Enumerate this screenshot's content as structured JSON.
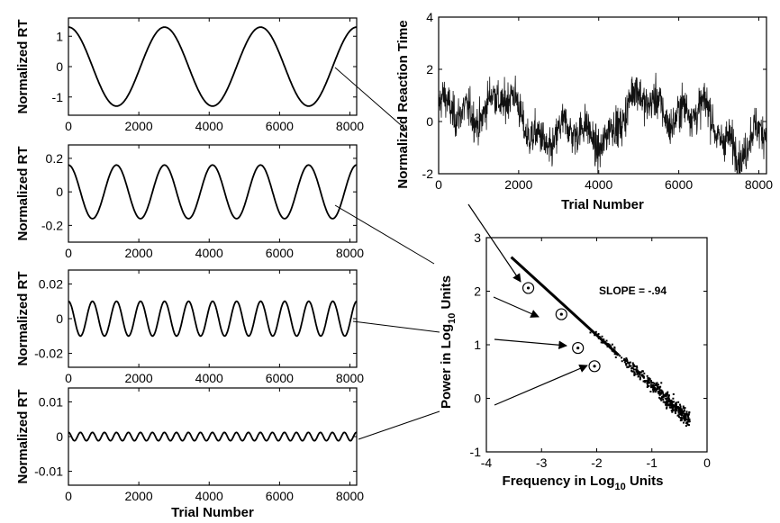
{
  "chart_data": [
    {
      "id": "p1",
      "type": "line",
      "ylabel": "Normalized RT",
      "xlabel": "",
      "xlim": [
        0,
        8192
      ],
      "ylim": [
        -1.6,
        1.6
      ],
      "xticks": [
        0,
        2000,
        4000,
        6000,
        8000
      ],
      "xticklabels": [
        "0",
        "2000",
        "4000",
        "6000",
        "8000"
      ],
      "yticks": [
        -1,
        0,
        1
      ],
      "yticklabels": [
        "-1",
        "0",
        "1"
      ],
      "series": [
        {
          "kind": "sine",
          "amplitude": 1.3,
          "period": 2731,
          "phase_deg": 90
        }
      ]
    },
    {
      "id": "p2",
      "type": "line",
      "ylabel": "Normalized RT",
      "xlabel": "",
      "xlim": [
        0,
        8192
      ],
      "ylim": [
        -0.3,
        0.28
      ],
      "xticks": [
        0,
        2000,
        4000,
        6000,
        8000
      ],
      "xticklabels": [
        "0",
        "2000",
        "4000",
        "6000",
        "8000"
      ],
      "yticks": [
        -0.2,
        0,
        0.2
      ],
      "yticklabels": [
        "-0.2",
        "0",
        "0.2"
      ],
      "series": [
        {
          "kind": "sine",
          "amplitude": 0.16,
          "period": 1365,
          "phase_deg": 90
        }
      ]
    },
    {
      "id": "p3",
      "type": "line",
      "ylabel": "Normalized RT",
      "xlabel": "",
      "xlim": [
        0,
        8192
      ],
      "ylim": [
        -0.028,
        0.028
      ],
      "xticks": [
        0,
        2000,
        4000,
        6000,
        8000
      ],
      "xticklabels": [
        "0",
        "2000",
        "4000",
        "6000",
        "8000"
      ],
      "yticks": [
        -0.02,
        0,
        0.02
      ],
      "yticklabels": [
        "-0.02",
        "0",
        "0.02"
      ],
      "series": [
        {
          "kind": "sine",
          "amplitude": 0.01,
          "period": 683,
          "phase_deg": 90
        }
      ]
    },
    {
      "id": "p4",
      "type": "line",
      "ylabel": "Normalized RT",
      "xlabel": "Trial Number",
      "xlim": [
        0,
        8192
      ],
      "ylim": [
        -0.014,
        0.014
      ],
      "xticks": [
        0,
        2000,
        4000,
        6000,
        8000
      ],
      "xticklabels": [
        "0",
        "2000",
        "4000",
        "6000",
        "8000"
      ],
      "yticks": [
        -0.01,
        0,
        0.01
      ],
      "yticklabels": [
        "-0.01",
        "0",
        "0.01"
      ],
      "series": [
        {
          "kind": "sine",
          "amplitude": 0.0012,
          "period": 341,
          "phase_deg": 90
        }
      ]
    },
    {
      "id": "ts",
      "type": "line",
      "ylabel": "Normalized Reaction Time",
      "xlabel": "Trial Number",
      "xlim": [
        0,
        8192
      ],
      "ylim": [
        -2,
        4
      ],
      "xticks": [
        0,
        2000,
        4000,
        6000,
        8000
      ],
      "xticklabels": [
        "0",
        "2000",
        "4000",
        "6000",
        "8000"
      ],
      "yticks": [
        -2,
        0,
        2,
        4
      ],
      "yticklabels": [
        "-2",
        "0",
        "2",
        "4"
      ],
      "series": [
        {
          "kind": "noise",
          "spread": 1.6,
          "clip": [
            -2,
            3.4
          ]
        }
      ]
    },
    {
      "id": "spec",
      "type": "scatter",
      "ylabel_parts": [
        "Power in Log",
        "10",
        " Units"
      ],
      "xlabel_parts": [
        "Frequency in Log",
        "10",
        " Units"
      ],
      "xlim": [
        -4,
        0
      ],
      "ylim": [
        -1,
        3
      ],
      "xticks": [
        -4,
        -3,
        -2,
        -1,
        0
      ],
      "xticklabels": [
        "-4",
        "-3",
        "-2",
        "-1",
        "0"
      ],
      "yticks": [
        -1,
        0,
        1,
        2,
        3
      ],
      "yticklabels": [
        "-1",
        "0",
        "1",
        "2",
        "3"
      ],
      "annotation": "SLOPE = -.94",
      "fit_line": {
        "slope": -0.94,
        "intercept": -0.7,
        "x_range": [
          -3.55,
          -1.6
        ]
      },
      "highlighted_points": [
        {
          "x": -3.24,
          "y": 2.06
        },
        {
          "x": -2.64,
          "y": 1.57
        },
        {
          "x": -2.34,
          "y": 0.94
        },
        {
          "x": -2.04,
          "y": 0.6
        }
      ],
      "cloud": {
        "x_range": [
          -2.2,
          -0.31
        ],
        "slope": -0.94,
        "intercept": -0.7,
        "spread": 0.22
      }
    }
  ]
}
